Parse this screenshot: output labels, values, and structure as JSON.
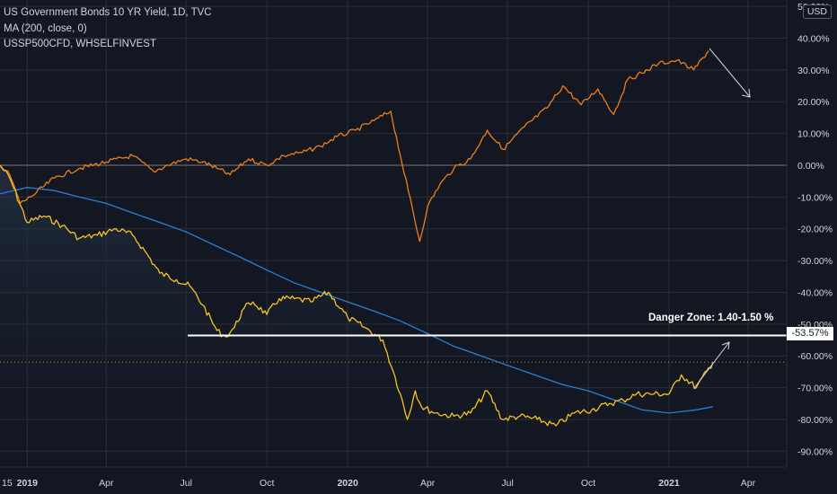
{
  "legend": {
    "title": "US Government Bonds 10 YR Yield, 1D, TVC",
    "ma": "MA (200, close, 0)",
    "compare": "USSP500CFD, WHSELFINVEST"
  },
  "axis": {
    "currency": "USD",
    "y_ticks": [
      "50.00%",
      "40.00%",
      "30.00%",
      "20.00%",
      "10.00%",
      "0.00%",
      "-10.00%",
      "-20.00%",
      "-30.00%",
      "-40.00%",
      "-50.00%",
      "-60.00%",
      "-70.00%",
      "-80.00%",
      "-90.00%"
    ],
    "x_ticks": [
      "15",
      "2019",
      "Apr",
      "Jul",
      "Oct",
      "2020",
      "Apr",
      "Jul",
      "Oct",
      "2021",
      "Apr"
    ]
  },
  "annotation": {
    "label": "Danger Zone: 1.40-1.50 %",
    "level_value": "-53.57%",
    "level": -53.57
  },
  "colors": {
    "background": "#131722",
    "yield_line": "#f7c325",
    "spx_line": "#f07d1a",
    "ma_line": "#2a7fd4",
    "grid": "#2a2e39",
    "text": "#d1d4dc"
  },
  "chart_data": {
    "type": "line",
    "y_unit": "%",
    "ylim": [
      -95,
      52
    ],
    "x_range": [
      "2018-12-01",
      "2021-05-15"
    ],
    "series": [
      {
        "name": "US Government Bonds 10 YR Yield, 1D, TVC",
        "x": [
          "2018-12-01",
          "2018-12-12",
          "2019-01-01",
          "2019-01-20",
          "2019-02-10",
          "2019-03-01",
          "2019-03-22",
          "2019-04-12",
          "2019-05-01",
          "2019-05-15",
          "2019-06-01",
          "2019-06-20",
          "2019-07-05",
          "2019-07-20",
          "2019-08-05",
          "2019-08-15",
          "2019-08-25",
          "2019-09-05",
          "2019-09-15",
          "2019-10-01",
          "2019-10-15",
          "2019-11-01",
          "2019-11-20",
          "2019-12-10",
          "2020-01-01",
          "2020-01-20",
          "2020-02-10",
          "2020-02-22",
          "2020-03-01",
          "2020-03-09",
          "2020-03-18",
          "2020-03-25",
          "2020-04-10",
          "2020-05-01",
          "2020-05-20",
          "2020-06-08",
          "2020-06-25",
          "2020-07-15",
          "2020-08-04",
          "2020-08-25",
          "2020-09-15",
          "2020-10-05",
          "2020-10-25",
          "2020-11-10",
          "2020-11-25",
          "2020-12-15",
          "2021-01-01",
          "2021-01-15",
          "2021-02-01",
          "2021-02-20"
        ],
        "values": [
          0,
          -4,
          -18,
          -16,
          -19,
          -23,
          -22,
          -20,
          -22,
          -27,
          -34,
          -36,
          -38,
          -44,
          -52,
          -54,
          -51,
          -45,
          -43,
          -47,
          -42,
          -42,
          -43,
          -40,
          -48,
          -51,
          -55,
          -65,
          -72,
          -80,
          -71,
          -76,
          -78,
          -79,
          -78,
          -71,
          -80,
          -79,
          -80,
          -82,
          -78,
          -77,
          -75,
          -74,
          -72,
          -72,
          -72,
          -66,
          -70,
          -62
        ]
      },
      {
        "name": "USSP500CFD, WHSELFINVEST",
        "x": [
          "2018-12-01",
          "2018-12-12",
          "2018-12-24",
          "2019-01-05",
          "2019-02-01",
          "2019-03-01",
          "2019-04-01",
          "2019-05-01",
          "2019-05-25",
          "2019-06-10",
          "2019-07-01",
          "2019-07-20",
          "2019-08-05",
          "2019-08-20",
          "2019-09-10",
          "2019-10-01",
          "2019-10-20",
          "2019-11-10",
          "2019-12-01",
          "2019-12-20",
          "2020-01-10",
          "2020-01-31",
          "2020-02-19",
          "2020-03-01",
          "2020-03-10",
          "2020-03-23",
          "2020-04-01",
          "2020-04-15",
          "2020-05-01",
          "2020-05-20",
          "2020-06-08",
          "2020-06-26",
          "2020-07-20",
          "2020-08-15",
          "2020-09-02",
          "2020-09-23",
          "2020-10-12",
          "2020-10-30",
          "2020-11-15",
          "2020-12-01",
          "2020-12-20",
          "2021-01-10",
          "2021-01-29",
          "2021-02-15"
        ],
        "values": [
          0,
          -3,
          -12,
          -10,
          -4,
          -1,
          1,
          3,
          -2,
          0,
          2,
          1,
          -1,
          -3,
          2,
          0,
          3,
          4,
          6,
          9,
          11,
          14,
          17,
          3,
          -8,
          -24,
          -13,
          -6,
          -1,
          2,
          11,
          5,
          12,
          18,
          25,
          19,
          24,
          16,
          27,
          29,
          32,
          33,
          30,
          36
        ]
      },
      {
        "name": "MA (200, close, 0)",
        "x": [
          "2018-12-01",
          "2019-01-01",
          "2019-02-01",
          "2019-03-01",
          "2019-04-01",
          "2019-05-01",
          "2019-06-01",
          "2019-07-01",
          "2019-08-01",
          "2019-09-01",
          "2019-10-01",
          "2019-11-01",
          "2019-12-01",
          "2020-01-01",
          "2020-02-01",
          "2020-03-01",
          "2020-04-01",
          "2020-05-01",
          "2020-06-01",
          "2020-07-01",
          "2020-08-01",
          "2020-09-01",
          "2020-10-01",
          "2020-11-01",
          "2020-12-01",
          "2021-01-01",
          "2021-02-01",
          "2021-02-20"
        ],
        "values": [
          -9,
          -7,
          -8,
          -10,
          -12,
          -15,
          -18,
          -21,
          -25,
          -29,
          -33,
          -37,
          -40,
          -43,
          -46,
          -49,
          -53,
          -57,
          -60,
          -63,
          -66,
          -69,
          -71,
          -74,
          -77,
          -78,
          -77,
          -76
        ]
      }
    ]
  }
}
